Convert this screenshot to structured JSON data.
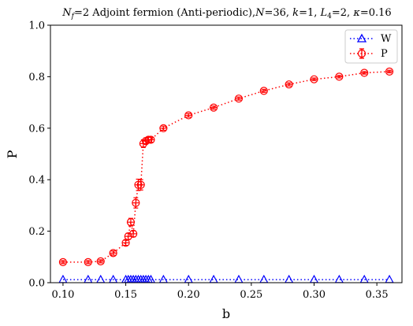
{
  "chart_data": {
    "type": "scatter",
    "title": "N_f=2 Adjoint fermion (Anti-periodic), N=36, k=1, L4=2, κ=0.16",
    "title_parts": {
      "nf_sym": "N",
      "nf_sub": "f",
      "nf_val": "=2 Adjoint fermion (Anti-periodic),",
      "n_sym": "N",
      "n_val": "=36, ",
      "k_sym": "k",
      "k_val": "=1, ",
      "l_sym": "L",
      "l_sub": "4",
      "l_val": "=2, ",
      "kappa_sym": "κ",
      "kappa_val": "=0.16"
    },
    "xlabel": "b",
    "ylabel": "P",
    "xlim": [
      0.09,
      0.37
    ],
    "ylim": [
      0.0,
      1.0
    ],
    "xticks": [
      "0.10",
      "0.15",
      "0.20",
      "0.25",
      "0.30",
      "0.35"
    ],
    "xtick_values": [
      0.1,
      0.15,
      0.2,
      0.25,
      0.3,
      0.35
    ],
    "yticks": [
      "0.0",
      "0.2",
      "0.4",
      "0.6",
      "0.8",
      "1.0"
    ],
    "ytick_values": [
      0.0,
      0.2,
      0.4,
      0.6,
      0.8,
      1.0
    ],
    "grid": false,
    "legend_position": "top-right",
    "series": [
      {
        "name": "W",
        "color": "#0000ff",
        "marker": "triangle",
        "linestyle": "dotted",
        "x": [
          0.1,
          0.12,
          0.13,
          0.14,
          0.15,
          0.152,
          0.154,
          0.156,
          0.158,
          0.16,
          0.162,
          0.164,
          0.166,
          0.168,
          0.17,
          0.18,
          0.2,
          0.22,
          0.24,
          0.26,
          0.28,
          0.3,
          0.32,
          0.34,
          0.36
        ],
        "y": [
          0.012,
          0.012,
          0.012,
          0.012,
          0.012,
          0.012,
          0.012,
          0.012,
          0.012,
          0.012,
          0.012,
          0.012,
          0.012,
          0.012,
          0.012,
          0.012,
          0.012,
          0.012,
          0.012,
          0.012,
          0.012,
          0.012,
          0.012,
          0.012,
          0.012
        ]
      },
      {
        "name": "P",
        "color": "#ff0000",
        "marker": "circle",
        "linestyle": "dotted",
        "errorbars": true,
        "x": [
          0.1,
          0.12,
          0.13,
          0.14,
          0.15,
          0.152,
          0.154,
          0.156,
          0.158,
          0.16,
          0.162,
          0.164,
          0.166,
          0.168,
          0.17,
          0.18,
          0.2,
          0.22,
          0.24,
          0.26,
          0.28,
          0.3,
          0.32,
          0.34,
          0.36
        ],
        "y": [
          0.08,
          0.08,
          0.083,
          0.115,
          0.155,
          0.18,
          0.235,
          0.19,
          0.31,
          0.38,
          0.38,
          0.54,
          0.55,
          0.555,
          0.555,
          0.6,
          0.65,
          0.68,
          0.715,
          0.745,
          0.77,
          0.79,
          0.8,
          0.815,
          0.82
        ],
        "err": [
          0.006,
          0.006,
          0.006,
          0.008,
          0.01,
          0.012,
          0.015,
          0.012,
          0.02,
          0.022,
          0.02,
          0.015,
          0.012,
          0.01,
          0.01,
          0.008,
          0.007,
          0.006,
          0.006,
          0.006,
          0.006,
          0.005,
          0.005,
          0.005,
          0.005
        ]
      }
    ]
  }
}
